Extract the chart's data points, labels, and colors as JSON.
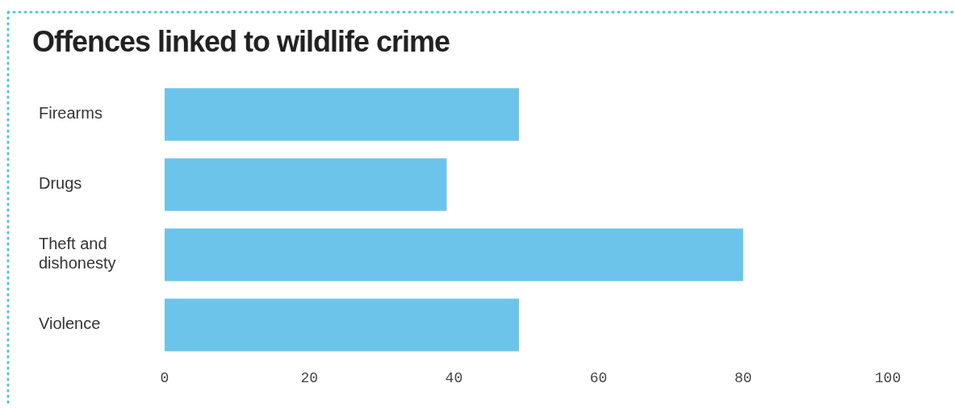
{
  "chart_data": {
    "type": "bar",
    "orientation": "horizontal",
    "title": "Offences linked to wildlife crime",
    "categories": [
      "Firearms",
      "Drugs",
      "Theft and dishonesty",
      "Violence"
    ],
    "values": [
      49,
      39,
      80,
      49
    ],
    "color": "#6cc4ea",
    "xlim": [
      0,
      100
    ],
    "xticks": [
      0,
      20,
      40,
      60,
      80,
      100
    ]
  }
}
